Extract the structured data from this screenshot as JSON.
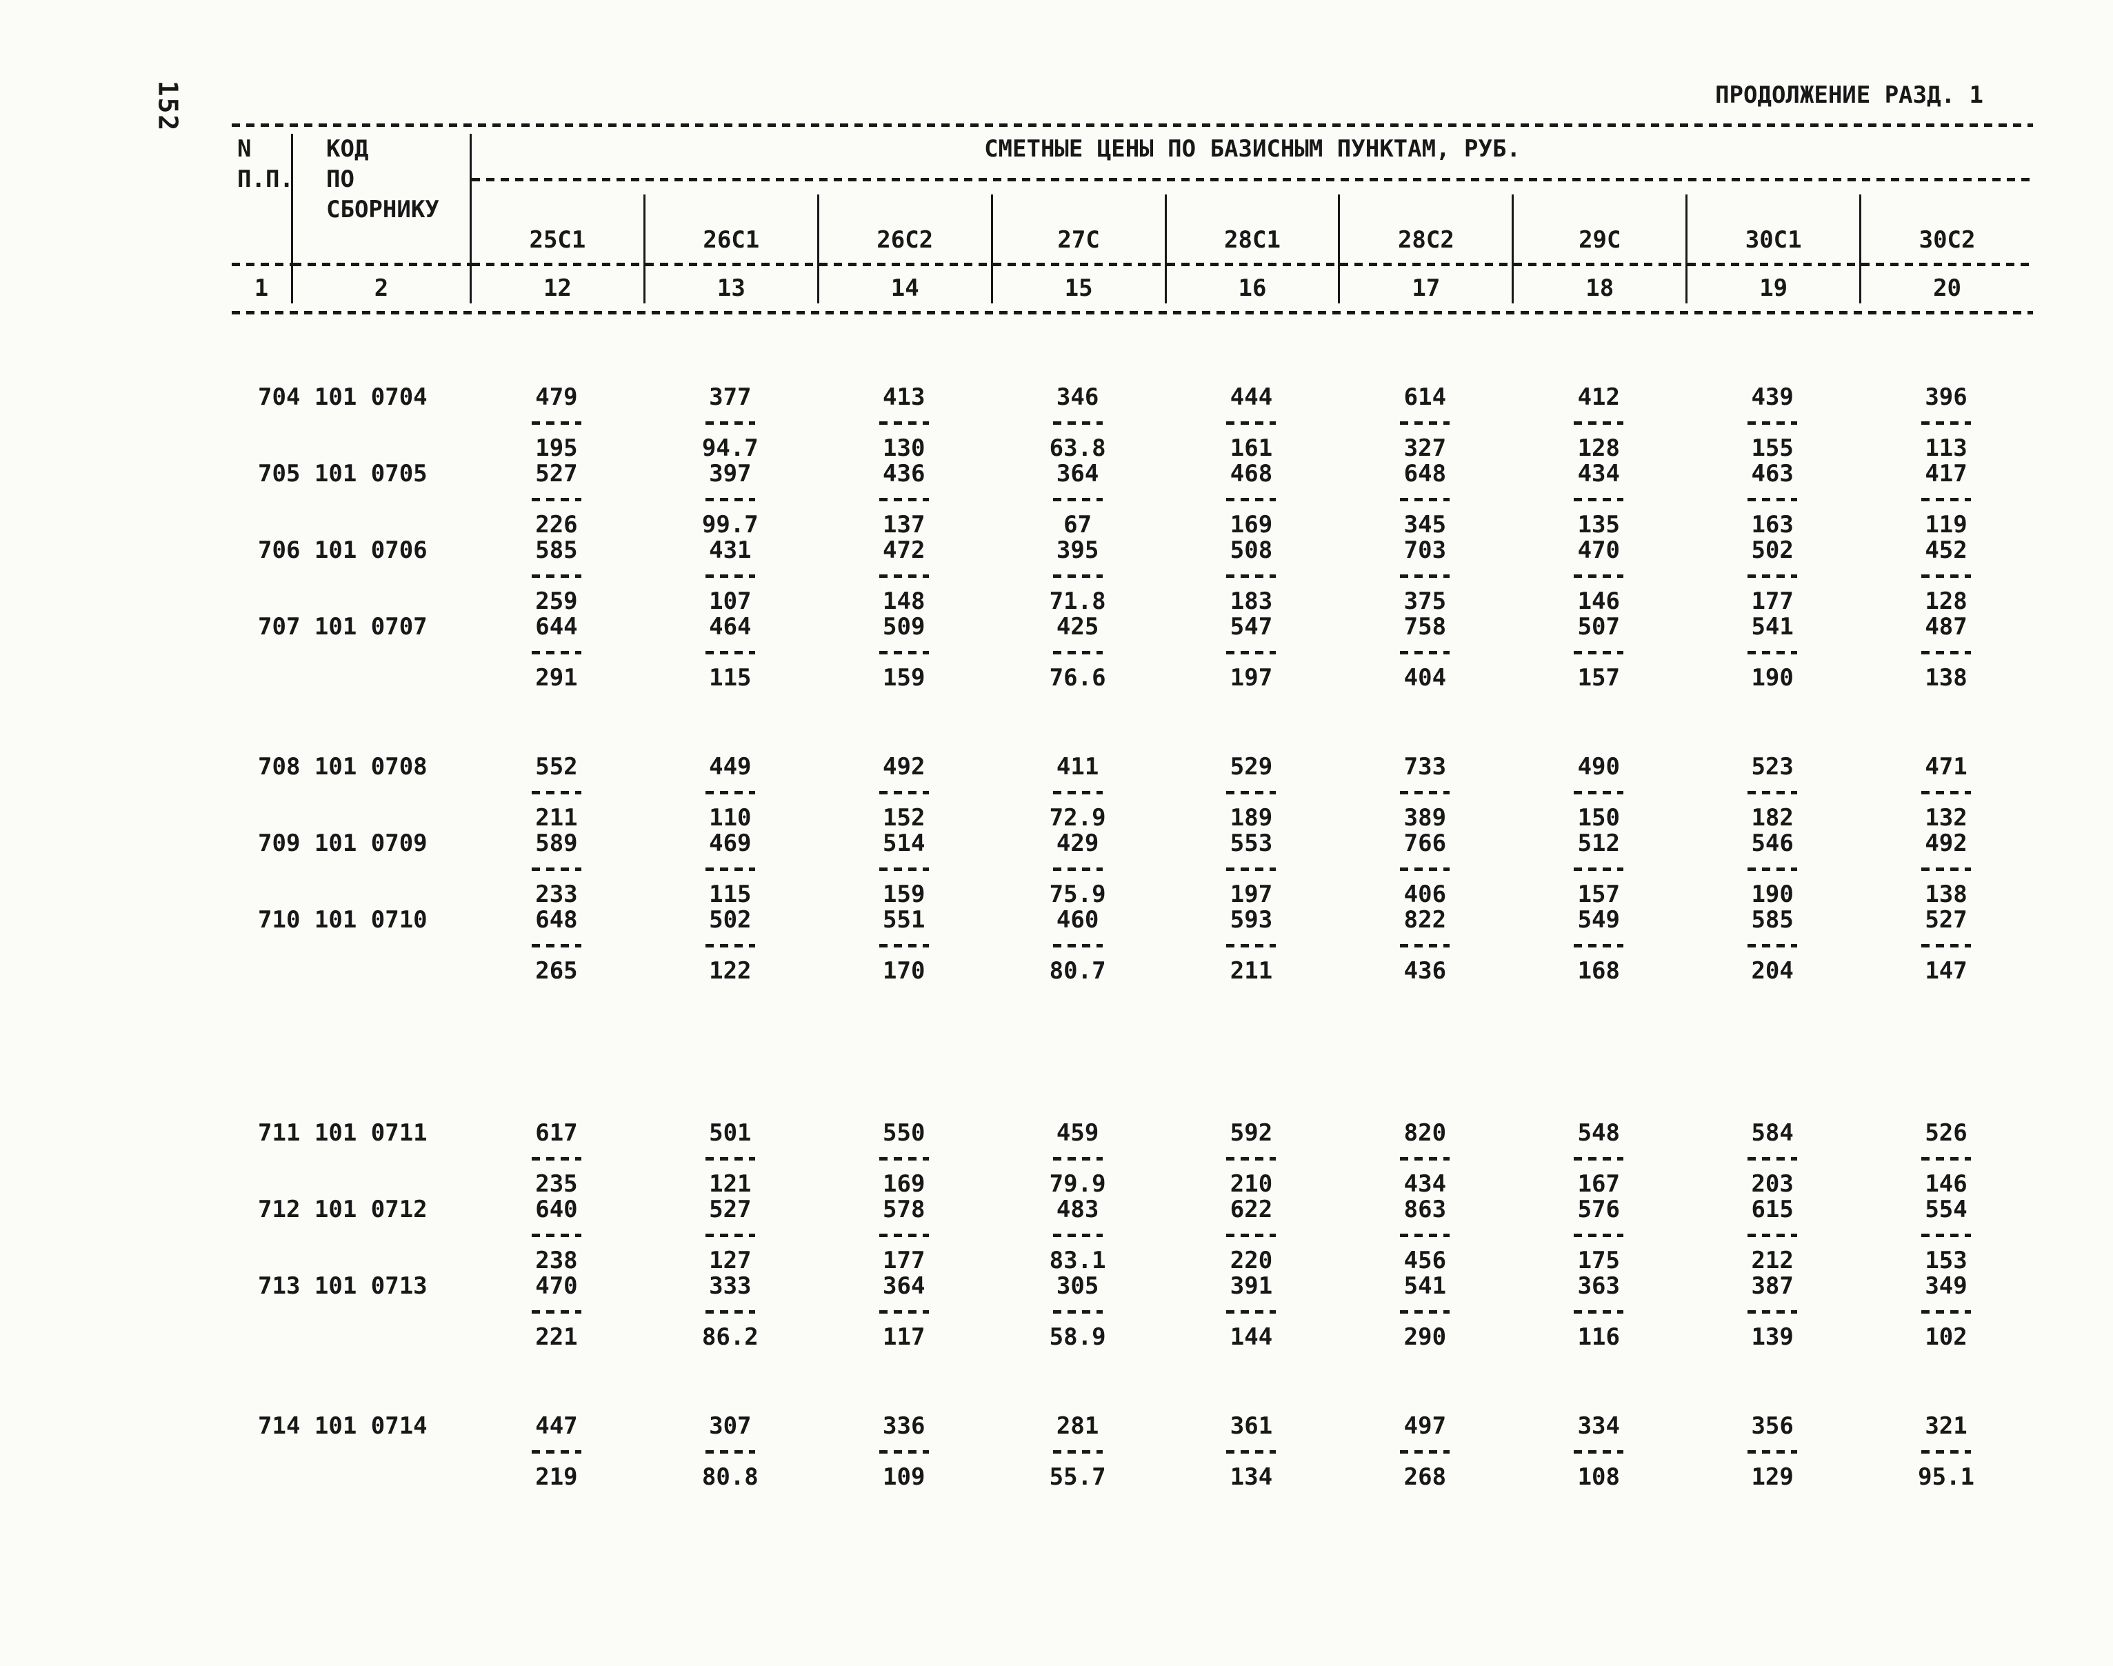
{
  "colors": {
    "ink": "#181818",
    "paper": "#fbfbf8"
  },
  "page": {
    "page_number_side": "152",
    "continuation_label": "ПРОДОЛЖЕНИЕ РАЗД. 1"
  },
  "table": {
    "header": {
      "col1_line1": "N",
      "col1_line2": "П.П.",
      "col2_line1": "КОД",
      "col2_line2": "ПО",
      "col2_line3": "СБОРНИКУ",
      "prices_title": "СМЕТНЫЕ ЦЕНЫ ПО БАЗИСНЫМ ПУНКТАМ, РУБ.",
      "price_columns": [
        "25С1",
        "26С1",
        "26С2",
        "27С",
        "28С1",
        "28С2",
        "29С",
        "30С1",
        "30С2"
      ],
      "col_numbers": [
        "1",
        "2",
        "12",
        "13",
        "14",
        "15",
        "16",
        "17",
        "18",
        "19",
        "20"
      ]
    },
    "rows": [
      {
        "code": "704 101 0704",
        "gap_before": "none",
        "values": [
          [
            "479",
            "195"
          ],
          [
            "377",
            "94.7"
          ],
          [
            "413",
            "130"
          ],
          [
            "346",
            "63.8"
          ],
          [
            "444",
            "161"
          ],
          [
            "614",
            "327"
          ],
          [
            "412",
            "128"
          ],
          [
            "439",
            "155"
          ],
          [
            "396",
            "113"
          ]
        ]
      },
      {
        "code": "705 101 0705",
        "gap_before": "none",
        "values": [
          [
            "527",
            "226"
          ],
          [
            "397",
            "99.7"
          ],
          [
            "436",
            "137"
          ],
          [
            "364",
            "67"
          ],
          [
            "468",
            "169"
          ],
          [
            "648",
            "345"
          ],
          [
            "434",
            "135"
          ],
          [
            "463",
            "163"
          ],
          [
            "417",
            "119"
          ]
        ]
      },
      {
        "code": "706 101 0706",
        "gap_before": "none",
        "values": [
          [
            "585",
            "259"
          ],
          [
            "431",
            "107"
          ],
          [
            "472",
            "148"
          ],
          [
            "395",
            "71.8"
          ],
          [
            "508",
            "183"
          ],
          [
            "703",
            "375"
          ],
          [
            "470",
            "146"
          ],
          [
            "502",
            "177"
          ],
          [
            "452",
            "128"
          ]
        ]
      },
      {
        "code": "707 101 0707",
        "gap_before": "none",
        "values": [
          [
            "644",
            "291"
          ],
          [
            "464",
            "115"
          ],
          [
            "509",
            "159"
          ],
          [
            "425",
            "76.6"
          ],
          [
            "547",
            "197"
          ],
          [
            "758",
            "404"
          ],
          [
            "507",
            "157"
          ],
          [
            "541",
            "190"
          ],
          [
            "487",
            "138"
          ]
        ]
      },
      {
        "code": "708 101 0708",
        "gap_before": "small",
        "values": [
          [
            "552",
            "211"
          ],
          [
            "449",
            "110"
          ],
          [
            "492",
            "152"
          ],
          [
            "411",
            "72.9"
          ],
          [
            "529",
            "189"
          ],
          [
            "733",
            "389"
          ],
          [
            "490",
            "150"
          ],
          [
            "523",
            "182"
          ],
          [
            "471",
            "132"
          ]
        ]
      },
      {
        "code": "709 101 0709",
        "gap_before": "none",
        "values": [
          [
            "589",
            "233"
          ],
          [
            "469",
            "115"
          ],
          [
            "514",
            "159"
          ],
          [
            "429",
            "75.9"
          ],
          [
            "553",
            "197"
          ],
          [
            "766",
            "406"
          ],
          [
            "512",
            "157"
          ],
          [
            "546",
            "190"
          ],
          [
            "492",
            "138"
          ]
        ]
      },
      {
        "code": "710 101 0710",
        "gap_before": "none",
        "values": [
          [
            "648",
            "265"
          ],
          [
            "502",
            "122"
          ],
          [
            "551",
            "170"
          ],
          [
            "460",
            "80.7"
          ],
          [
            "593",
            "211"
          ],
          [
            "822",
            "436"
          ],
          [
            "549",
            "168"
          ],
          [
            "585",
            "204"
          ],
          [
            "527",
            "147"
          ]
        ]
      },
      {
        "code": "711 101 0711",
        "gap_before": "large",
        "values": [
          [
            "617",
            "235"
          ],
          [
            "501",
            "121"
          ],
          [
            "550",
            "169"
          ],
          [
            "459",
            "79.9"
          ],
          [
            "592",
            "210"
          ],
          [
            "820",
            "434"
          ],
          [
            "548",
            "167"
          ],
          [
            "584",
            "203"
          ],
          [
            "526",
            "146"
          ]
        ]
      },
      {
        "code": "712 101 0712",
        "gap_before": "none",
        "values": [
          [
            "640",
            "238"
          ],
          [
            "527",
            "127"
          ],
          [
            "578",
            "177"
          ],
          [
            "483",
            "83.1"
          ],
          [
            "622",
            "220"
          ],
          [
            "863",
            "456"
          ],
          [
            "576",
            "175"
          ],
          [
            "615",
            "212"
          ],
          [
            "554",
            "153"
          ]
        ]
      },
      {
        "code": "713 101 0713",
        "gap_before": "none",
        "values": [
          [
            "470",
            "221"
          ],
          [
            "333",
            "86.2"
          ],
          [
            "364",
            "117"
          ],
          [
            "305",
            "58.9"
          ],
          [
            "391",
            "144"
          ],
          [
            "541",
            "290"
          ],
          [
            "363",
            "116"
          ],
          [
            "387",
            "139"
          ],
          [
            "349",
            "102"
          ]
        ]
      },
      {
        "code": "714 101 0714",
        "gap_before": "small",
        "values": [
          [
            "447",
            "219"
          ],
          [
            "307",
            "80.8"
          ],
          [
            "336",
            "109"
          ],
          [
            "281",
            "55.7"
          ],
          [
            "361",
            "134"
          ],
          [
            "497",
            "268"
          ],
          [
            "334",
            "108"
          ],
          [
            "356",
            "129"
          ],
          [
            "321",
            "95.1"
          ]
        ]
      }
    ]
  }
}
